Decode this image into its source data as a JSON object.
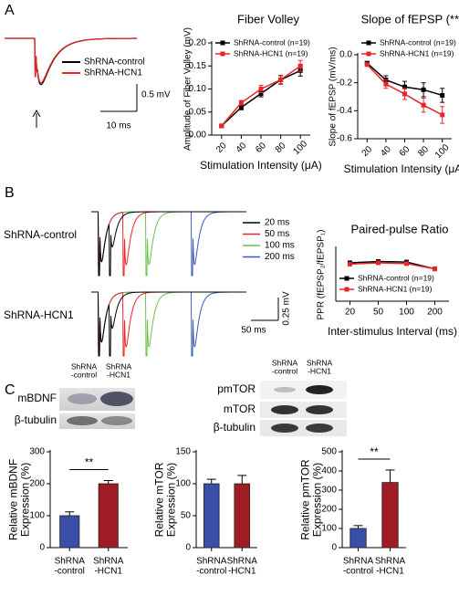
{
  "panel_labels": [
    "A",
    "B",
    "C"
  ],
  "traces_a": {
    "legend": [
      {
        "name": "ShRNA-control",
        "color": "#000000"
      },
      {
        "name": "ShRNA-HCN1",
        "color": "#e8262a"
      }
    ],
    "scale_y": "0.5 mV",
    "scale_x": "10 ms"
  },
  "traces_b": {
    "rows": [
      {
        "name": "ShRNA-control",
        "color": "#000000"
      },
      {
        "name": "ShRNA-HCN1",
        "color": "#e8262a"
      }
    ],
    "legend": [
      {
        "name": "20 ms",
        "color": "#000000"
      },
      {
        "name": "50 ms",
        "color": "#e8262a"
      },
      {
        "name": "100 ms",
        "color": "#6cc24a"
      },
      {
        "name": "200 ms",
        "color": "#3a5bb8"
      }
    ],
    "scale_y": "0.25 mV",
    "scale_x": "50 ms"
  },
  "blots": {
    "left": {
      "lanes": [
        "ShRNA\n-control",
        "ShRNA\n-HCN1"
      ],
      "rows": [
        "mBDNF",
        "β-tubulin"
      ]
    },
    "right": {
      "lanes": [
        "ShRNA\n-control",
        "ShRNA\n-HCN1"
      ],
      "rows": [
        "pmTOR",
        "mTOR",
        "β-tubulin"
      ]
    }
  },
  "chart_data": [
    {
      "type": "line",
      "title": "Fiber Volley",
      "x_label": "Stimulation Intensity (μA)",
      "y_label": "Amplitude of Fiber Volley (mV)",
      "x": [
        20,
        40,
        60,
        80,
        100
      ],
      "xlim": [
        10,
        110
      ],
      "xticks": [
        20,
        40,
        60,
        80,
        100
      ],
      "ylim": [
        0,
        0.2
      ],
      "yticks": [
        {
          "value": 0,
          "label": "0.00"
        },
        0.05,
        {
          "value": 0.1,
          "label": "0.10"
        },
        0.15,
        {
          "value": 0.2,
          "label": "0.20"
        }
      ],
      "series": [
        {
          "name": "ShRNA-control (n=19)",
          "color": "#000000",
          "values": [
            0.02,
            0.06,
            0.09,
            0.12,
            0.14
          ],
          "errors": [
            0.002,
            0.005,
            0.007,
            0.009,
            0.012
          ]
        },
        {
          "name": "ShRNA-HCN1 (n=19)",
          "color": "#e8262a",
          "values": [
            0.02,
            0.07,
            0.1,
            0.12,
            0.15
          ],
          "errors": [
            0.002,
            0.005,
            0.008,
            0.01,
            0.012
          ]
        }
      ]
    },
    {
      "type": "line",
      "title": "Slope of fEPSP (**)",
      "x_label": "Stimulation Intensity (μA)",
      "y_label": "Slope of fEPSP (mV/ms)",
      "x": [
        20,
        40,
        60,
        80,
        100
      ],
      "xlim": [
        10,
        110
      ],
      "xticks": [
        20,
        40,
        60,
        80,
        100
      ],
      "ylim": [
        -0.6,
        0
      ],
      "yticks": [
        -0.6,
        -0.4,
        -0.2,
        {
          "value": 0,
          "label": "0.0"
        }
      ],
      "series": [
        {
          "name": "ShRNA-control (n=19)",
          "color": "#000000",
          "values": [
            -0.06,
            -0.18,
            -0.23,
            -0.25,
            -0.29
          ],
          "errors": [
            0.01,
            0.03,
            0.04,
            0.05,
            0.05
          ]
        },
        {
          "name": "ShRNA-HCN1 (n=19)",
          "color": "#e8262a",
          "values": [
            -0.07,
            -0.21,
            -0.28,
            -0.36,
            -0.43
          ],
          "errors": [
            0.01,
            0.03,
            0.04,
            0.05,
            0.06
          ]
        }
      ]
    },
    {
      "type": "line",
      "title": "Paired-pulse Ratio",
      "x_label": "Inter-stimulus Interval (ms)",
      "y_label": "PPR (fEPSP₂/fEPSP₁)",
      "categories": [
        "20",
        "50",
        "100",
        "200"
      ],
      "ylim": [
        0,
        2
      ],
      "series": [
        {
          "name": "ShRNA-control (n=19)",
          "color": "#000000",
          "values": [
            1.45,
            1.5,
            1.48,
            1.22
          ],
          "errors": [
            0.06,
            0.04,
            0.05,
            0.03
          ]
        },
        {
          "name": "ShRNA-HCN1 (n=19)",
          "color": "#e8262a",
          "values": [
            1.4,
            1.45,
            1.42,
            1.22
          ],
          "errors": [
            0.05,
            0.04,
            0.05,
            0.03
          ]
        }
      ]
    },
    {
      "type": "bar",
      "y_label": "Relative mBDNF\nExpression (%)",
      "categories": [
        "ShRNA\n-control",
        "ShRNA\n-HCN1"
      ],
      "values": [
        100,
        200
      ],
      "errors": [
        12,
        10
      ],
      "colors": [
        "#3a4fa8",
        "#a01c24"
      ],
      "ylim": [
        0,
        300
      ],
      "yticks": [
        0,
        100,
        200,
        300
      ],
      "annotation": "**"
    },
    {
      "type": "bar",
      "y_label": "Relative mTOR\nExpression (%)",
      "categories": [
        "ShRNA\n-control",
        "ShRNA\n-HCN1"
      ],
      "values": [
        100,
        100
      ],
      "errors": [
        7,
        13
      ],
      "colors": [
        "#3a4fa8",
        "#a01c24"
      ],
      "ylim": [
        0,
        150
      ],
      "yticks": [
        0,
        50,
        100,
        150
      ]
    },
    {
      "type": "bar",
      "y_label": "Relative pmTOR\nExpression (%)",
      "categories": [
        "ShRNA\n-control",
        "ShRNA\n-HCN1"
      ],
      "values": [
        100,
        340
      ],
      "errors": [
        15,
        65
      ],
      "colors": [
        "#3a4fa8",
        "#a01c24"
      ],
      "ylim": [
        0,
        500
      ],
      "yticks": [
        0,
        100,
        200,
        300,
        400,
        500
      ],
      "annotation": "**"
    }
  ]
}
